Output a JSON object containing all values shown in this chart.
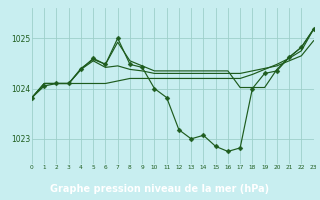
{
  "title": "Graphe pression niveau de la mer (hPa)",
  "xlim": [
    0,
    23
  ],
  "ylim": [
    1022.5,
    1025.6
  ],
  "yticks": [
    1023,
    1024,
    1025
  ],
  "xticks": [
    0,
    1,
    2,
    3,
    4,
    5,
    6,
    7,
    8,
    9,
    10,
    11,
    12,
    13,
    14,
    15,
    16,
    17,
    18,
    19,
    20,
    21,
    22,
    23
  ],
  "bg_color": "#c8eef0",
  "plot_bg": "#c8eef0",
  "grid_color": "#9ecfca",
  "line_color": "#1e5c1e",
  "footer_bg": "#2d6e2d",
  "footer_text": "#ffffff",
  "lines": [
    {
      "x": [
        0,
        1,
        2,
        3,
        4,
        5,
        6,
        7,
        8,
        9,
        10,
        11,
        12,
        13,
        14,
        15,
        16,
        17,
        18,
        19,
        20,
        21,
        22,
        23
      ],
      "y": [
        1023.82,
        1024.05,
        1024.1,
        1024.1,
        1024.38,
        1024.6,
        1024.48,
        1025.0,
        1024.48,
        1024.42,
        1024.0,
        1023.82,
        1023.18,
        1023.0,
        1023.07,
        1022.85,
        1022.75,
        1022.82,
        1024.0,
        1024.3,
        1024.35,
        1024.62,
        1024.82,
        1025.18
      ],
      "marker": true
    },
    {
      "x": [
        0,
        1,
        2,
        3,
        4,
        5,
        6,
        7,
        8,
        9,
        10,
        11,
        12,
        13,
        14,
        15,
        16,
        17,
        18,
        19,
        20,
        21,
        22,
        23
      ],
      "y": [
        1023.82,
        1024.1,
        1024.1,
        1024.1,
        1024.1,
        1024.1,
        1024.1,
        1024.15,
        1024.2,
        1024.2,
        1024.2,
        1024.2,
        1024.2,
        1024.2,
        1024.2,
        1024.2,
        1024.2,
        1024.2,
        1024.28,
        1024.38,
        1024.48,
        1024.6,
        1024.75,
        1025.18
      ],
      "marker": false
    },
    {
      "x": [
        0,
        1,
        2,
        3,
        4,
        5,
        6,
        7,
        8,
        9,
        10,
        11,
        12,
        13,
        14,
        15,
        16,
        17,
        18,
        19,
        20,
        21,
        22,
        23
      ],
      "y": [
        1023.82,
        1024.1,
        1024.1,
        1024.1,
        1024.38,
        1024.55,
        1024.42,
        1024.45,
        1024.38,
        1024.35,
        1024.3,
        1024.3,
        1024.3,
        1024.3,
        1024.3,
        1024.3,
        1024.3,
        1024.3,
        1024.35,
        1024.4,
        1024.45,
        1024.55,
        1024.65,
        1024.95
      ],
      "marker": false
    },
    {
      "x": [
        0,
        1,
        2,
        3,
        4,
        5,
        6,
        7,
        8,
        9,
        10,
        11,
        12,
        13,
        14,
        15,
        16,
        17,
        18,
        19,
        20,
        21,
        22,
        23
      ],
      "y": [
        1023.82,
        1024.1,
        1024.1,
        1024.1,
        1024.4,
        1024.58,
        1024.48,
        1024.92,
        1024.55,
        1024.45,
        1024.35,
        1024.35,
        1024.35,
        1024.35,
        1024.35,
        1024.35,
        1024.35,
        1024.02,
        1024.02,
        1024.02,
        1024.38,
        1024.62,
        1024.82,
        1025.18
      ],
      "marker": false
    }
  ],
  "markersize": 2.5,
  "linewidth": 0.85
}
